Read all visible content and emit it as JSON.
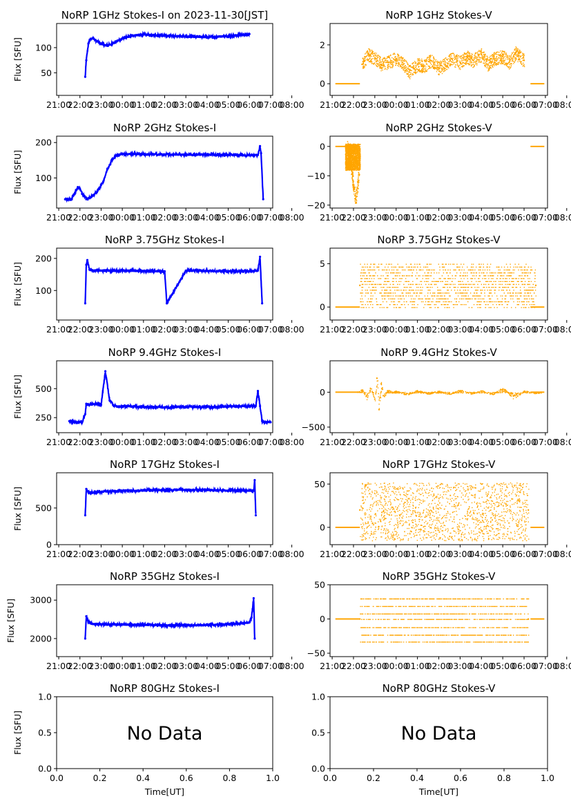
{
  "figure": {
    "ylabel": "Flux [SFU]",
    "xlabel": "Time[UT]",
    "no_data_text": "No Data"
  },
  "chart_data": [
    {
      "id": "i1",
      "type": "scatter",
      "title": "NoRP 1GHz Stokes-I on 2023-11-30[JST]",
      "color": "#0000ff",
      "ylabel": "Flux [SFU]",
      "xticks": [
        "21:00",
        "22:00",
        "23:00",
        "00:00",
        "01:00",
        "02:00",
        "03:00",
        "04:00",
        "05:00",
        "06:00",
        "07:00",
        "08:00"
      ],
      "xlim": [
        -0.1,
        10.1
      ],
      "ylim": [
        5,
        148
      ],
      "yticks": [
        50,
        100
      ],
      "series": [
        {
          "x": [
            1.25,
            1.3,
            1.4,
            1.5,
            1.65,
            1.8,
            2.0,
            2.3,
            2.6,
            3.0,
            3.5,
            4.0,
            5.0,
            6.0,
            7.0,
            8.0,
            8.5,
            9.0
          ],
          "y": [
            42,
            75,
            108,
            117,
            118,
            113,
            107,
            104,
            110,
            118,
            124,
            126,
            124,
            122,
            121,
            123,
            125,
            127
          ]
        }
      ]
    },
    {
      "id": "v1",
      "type": "scatter",
      "title": "NoRP 1GHz Stokes-V",
      "color": "#ffa500",
      "ylabel": "",
      "xticks": [
        "21:00",
        "22:00",
        "23:00",
        "00:00",
        "01:00",
        "02:00",
        "03:00",
        "04:00",
        "05:00",
        "06:00",
        "07:00",
        "08:00"
      ],
      "xlim": [
        -0.1,
        10.1
      ],
      "ylim": [
        -0.6,
        3.1
      ],
      "yticks": [
        0,
        2
      ],
      "series": [
        {
          "x": [
            1.4,
            1.5,
            1.7,
            2.0,
            2.3,
            2.6,
            3.0,
            3.3,
            3.6,
            4.0,
            4.3,
            4.6,
            5.0,
            5.3,
            5.6,
            6.0,
            6.3,
            6.6,
            7.0,
            7.3,
            7.6,
            8.0,
            8.3,
            8.6,
            9.0
          ],
          "y": [
            1.0,
            1.2,
            1.5,
            1.3,
            1.0,
            1.1,
            1.3,
            1.1,
            0.6,
            1.0,
            0.9,
            1.2,
            0.8,
            1.0,
            1.3,
            1.1,
            1.4,
            1.2,
            1.5,
            1.0,
            1.3,
            1.4,
            1.1,
            1.6,
            1.2
          ]
        }
      ]
    },
    {
      "id": "i2",
      "type": "scatter",
      "title": "NoRP 2GHz Stokes-I",
      "color": "#0000ff",
      "ylabel": "Flux [SFU]",
      "xticks": [
        "21:00",
        "22:00",
        "23:00",
        "00:00",
        "01:00",
        "02:00",
        "03:00",
        "04:00",
        "05:00",
        "06:00",
        "07:00",
        "08:00"
      ],
      "xlim": [
        -0.1,
        10.1
      ],
      "ylim": [
        15,
        218
      ],
      "yticks": [
        100,
        200
      ],
      "series": [
        {
          "x": [
            0.3,
            0.6,
            0.9,
            1.0,
            1.1,
            1.2,
            1.3,
            1.5,
            1.8,
            2.1,
            2.3,
            2.5,
            2.7,
            3.0,
            3.5,
            4.0,
            5.0,
            6.0,
            7.0,
            8.0,
            9.0,
            9.4,
            9.5,
            9.55,
            9.65
          ],
          "y": [
            40,
            40,
            74,
            70,
            55,
            50,
            40,
            45,
            60,
            90,
            125,
            150,
            163,
            168,
            168,
            167,
            166,
            166,
            166,
            165,
            164,
            165,
            190,
            170,
            40
          ]
        }
      ]
    },
    {
      "id": "v2",
      "type": "scatter",
      "title": "NoRP 2GHz Stokes-V",
      "color": "#ffa500",
      "ylabel": "",
      "xticks": [
        "21:00",
        "22:00",
        "23:00",
        "00:00",
        "01:00",
        "02:00",
        "03:00",
        "04:00",
        "05:00",
        "06:00",
        "07:00",
        "08:00"
      ],
      "xlim": [
        -0.1,
        10.1
      ],
      "ylim": [
        -21,
        3.5
      ],
      "yticks": [
        -20,
        -10,
        0
      ],
      "series": [
        {
          "x": [
            0.6,
            0.7,
            0.8,
            0.9,
            1.0,
            1.1,
            1.2,
            1.3
          ],
          "y": [
            0,
            -0.5,
            -3,
            -8,
            -14,
            -18,
            -12,
            -4
          ]
        }
      ]
    },
    {
      "id": "i3",
      "type": "scatter",
      "title": "NoRP 3.75GHz Stokes-I",
      "color": "#0000ff",
      "ylabel": "Flux [SFU]",
      "xticks": [
        "21:00",
        "22:00",
        "23:00",
        "00:00",
        "01:00",
        "02:00",
        "03:00",
        "04:00",
        "05:00",
        "06:00",
        "07:00",
        "08:00"
      ],
      "xlim": [
        -0.1,
        10.1
      ],
      "ylim": [
        8,
        232
      ],
      "yticks": [
        100,
        200
      ],
      "series": [
        {
          "x": [
            1.25,
            1.3,
            1.35,
            1.45,
            1.6,
            2.0,
            3.0,
            4.0,
            5.0,
            5.1,
            6.0,
            7.0,
            8.0,
            9.0,
            9.4,
            9.5,
            9.6
          ],
          "y": [
            60,
            180,
            195,
            165,
            163,
            162,
            162,
            161,
            160,
            60,
            162,
            161,
            160,
            160,
            162,
            205,
            60
          ]
        }
      ]
    },
    {
      "id": "v3",
      "type": "scatter",
      "title": "NoRP 3.75GHz Stokes-V",
      "color": "#ffa500",
      "ylabel": "",
      "xticks": [
        "21:00",
        "22:00",
        "23:00",
        "00:00",
        "01:00",
        "02:00",
        "03:00",
        "04:00",
        "05:00",
        "06:00",
        "07:00",
        "08:00"
      ],
      "xlim": [
        -0.1,
        10.1
      ],
      "ylim": [
        -1.5,
        6.8
      ],
      "yticks": [
        0,
        5
      ],
      "series": [
        {
          "x": [
            1.3,
            9.55
          ],
          "y": [
            2.5,
            2.5
          ]
        }
      ]
    },
    {
      "id": "i4",
      "type": "scatter",
      "title": "NoRP 9.4GHz Stokes-I",
      "color": "#0000ff",
      "ylabel": "Flux [SFU]",
      "xticks": [
        "21:00",
        "22:00",
        "23:00",
        "00:00",
        "01:00",
        "02:00",
        "03:00",
        "04:00",
        "05:00",
        "06:00",
        "07:00",
        "08:00"
      ],
      "xlim": [
        -0.1,
        10.1
      ],
      "ylim": [
        120,
        740
      ],
      "yticks": [
        250,
        500
      ],
      "series": [
        {
          "x": [
            0.5,
            0.7,
            0.9,
            1.1,
            1.25,
            1.3,
            1.4,
            1.6,
            1.8,
            2.0,
            2.2,
            2.4,
            2.6,
            2.8,
            3.0,
            3.5,
            4.0,
            5.0,
            6.0,
            7.0,
            8.0,
            9.0,
            9.3,
            9.4,
            9.5,
            9.6,
            9.7,
            10.0
          ],
          "y": [
            220,
            215,
            210,
            210,
            280,
            370,
            360,
            365,
            370,
            360,
            650,
            400,
            350,
            345,
            350,
            345,
            342,
            340,
            343,
            341,
            345,
            350,
            350,
            480,
            350,
            220,
            210,
            210
          ]
        }
      ]
    },
    {
      "id": "v4",
      "type": "scatter",
      "title": "NoRP 9.4GHz Stokes-V",
      "color": "#ffa500",
      "ylabel": "",
      "xticks": [
        "21:00",
        "22:00",
        "23:00",
        "00:00",
        "01:00",
        "02:00",
        "03:00",
        "04:00",
        "05:00",
        "06:00",
        "07:00",
        "08:00"
      ],
      "xlim": [
        -0.1,
        10.1
      ],
      "ylim": [
        -580,
        450
      ],
      "yticks": [
        -500,
        0
      ],
      "series": [
        {
          "x": [
            1.2,
            1.4,
            1.6,
            1.8,
            2.0,
            2.1,
            2.2,
            2.3,
            2.4,
            2.6,
            2.8,
            3.0,
            3.5,
            4.0,
            4.5,
            5.0,
            5.5,
            6.0,
            6.5,
            7.0,
            7.5,
            8.0,
            8.5,
            9.0,
            9.5,
            9.8
          ],
          "y": [
            0,
            30,
            -60,
            50,
            -100,
            200,
            -250,
            120,
            -50,
            20,
            0,
            10,
            -20,
            15,
            -10,
            10,
            -15,
            20,
            -10,
            15,
            -20,
            40,
            -50,
            10,
            -5,
            0
          ]
        }
      ]
    },
    {
      "id": "i5",
      "type": "scatter",
      "title": "NoRP 17GHz Stokes-I",
      "color": "#0000ff",
      "ylabel": "Flux [SFU]",
      "xticks": [
        "21:00",
        "22:00",
        "23:00",
        "00:00",
        "01:00",
        "02:00",
        "03:00",
        "04:00",
        "05:00",
        "06:00",
        "07:00",
        "08:00"
      ],
      "xlim": [
        -0.1,
        10.1
      ],
      "ylim": [
        0,
        980
      ],
      "yticks": [
        0,
        500
      ],
      "series": [
        {
          "x": [
            1.25,
            1.3,
            1.4,
            1.6,
            2.0,
            3.0,
            4.0,
            5.0,
            6.0,
            7.0,
            8.0,
            9.0,
            9.2,
            9.25,
            9.3
          ],
          "y": [
            400,
            760,
            720,
            710,
            720,
            735,
            740,
            745,
            748,
            745,
            740,
            738,
            735,
            880,
            400
          ]
        }
      ]
    },
    {
      "id": "v5",
      "type": "scatter",
      "title": "NoRP 17GHz Stokes-V",
      "color": "#ffa500",
      "ylabel": "",
      "xticks": [
        "21:00",
        "22:00",
        "23:00",
        "00:00",
        "01:00",
        "02:00",
        "03:00",
        "04:00",
        "05:00",
        "06:00",
        "07:00",
        "08:00"
      ],
      "xlim": [
        -0.1,
        10.1
      ],
      "ylim": [
        -20,
        63
      ],
      "yticks": [
        0,
        50
      ],
      "series": [
        {
          "x": [
            1.3,
            9.2
          ],
          "y": [
            20,
            20
          ]
        }
      ]
    },
    {
      "id": "i6",
      "type": "scatter",
      "title": "NoRP 35GHz Stokes-I",
      "color": "#0000ff",
      "ylabel": "Flux [SFU]",
      "xticks": [
        "21:00",
        "22:00",
        "23:00",
        "00:00",
        "01:00",
        "02:00",
        "03:00",
        "04:00",
        "05:00",
        "06:00",
        "07:00",
        "08:00"
      ],
      "xlim": [
        -0.1,
        10.1
      ],
      "ylim": [
        1530,
        3400
      ],
      "yticks": [
        2000,
        3000
      ],
      "series": [
        {
          "x": [
            1.25,
            1.3,
            1.4,
            1.6,
            2.0,
            3.0,
            4.0,
            5.0,
            6.0,
            7.0,
            8.0,
            8.5,
            9.0,
            9.1,
            9.2,
            9.25
          ],
          "y": [
            2000,
            2580,
            2420,
            2380,
            2370,
            2365,
            2360,
            2350,
            2340,
            2355,
            2370,
            2390,
            2420,
            2550,
            3050,
            2000
          ]
        }
      ]
    },
    {
      "id": "v6",
      "type": "scatter",
      "title": "NoRP 35GHz Stokes-V",
      "color": "#ffa500",
      "ylabel": "",
      "xticks": [
        "21:00",
        "22:00",
        "23:00",
        "00:00",
        "01:00",
        "02:00",
        "03:00",
        "04:00",
        "05:00",
        "06:00",
        "07:00",
        "08:00"
      ],
      "xlim": [
        -0.1,
        10.1
      ],
      "ylim": [
        -55,
        50
      ],
      "yticks": [
        -50,
        0,
        50
      ],
      "series": [
        {
          "x": [
            1.3,
            9.2
          ],
          "y": [
            0,
            0
          ]
        }
      ]
    },
    {
      "id": "i7",
      "type": "empty",
      "title": "NoRP 80GHz Stokes-I",
      "ylabel": "Flux [SFU]",
      "xlabel": "Time[UT]",
      "xlim": [
        0,
        1
      ],
      "ylim": [
        0,
        1
      ],
      "xticks": [
        "0.0",
        "0.2",
        "0.4",
        "0.6",
        "0.8",
        "1.0"
      ],
      "yticks": [
        "0.0",
        "0.5",
        "1.0"
      ],
      "annotation": "No Data"
    },
    {
      "id": "v7",
      "type": "empty",
      "title": "NoRP 80GHz Stokes-V",
      "ylabel": "",
      "xlabel": "Time[UT]",
      "xlim": [
        0,
        1
      ],
      "ylim": [
        0,
        1
      ],
      "xticks": [
        "0.0",
        "0.2",
        "0.4",
        "0.6",
        "0.8",
        "1.0"
      ],
      "yticks": [
        "0.0",
        "0.5",
        "1.0"
      ],
      "annotation": "No Data"
    }
  ]
}
